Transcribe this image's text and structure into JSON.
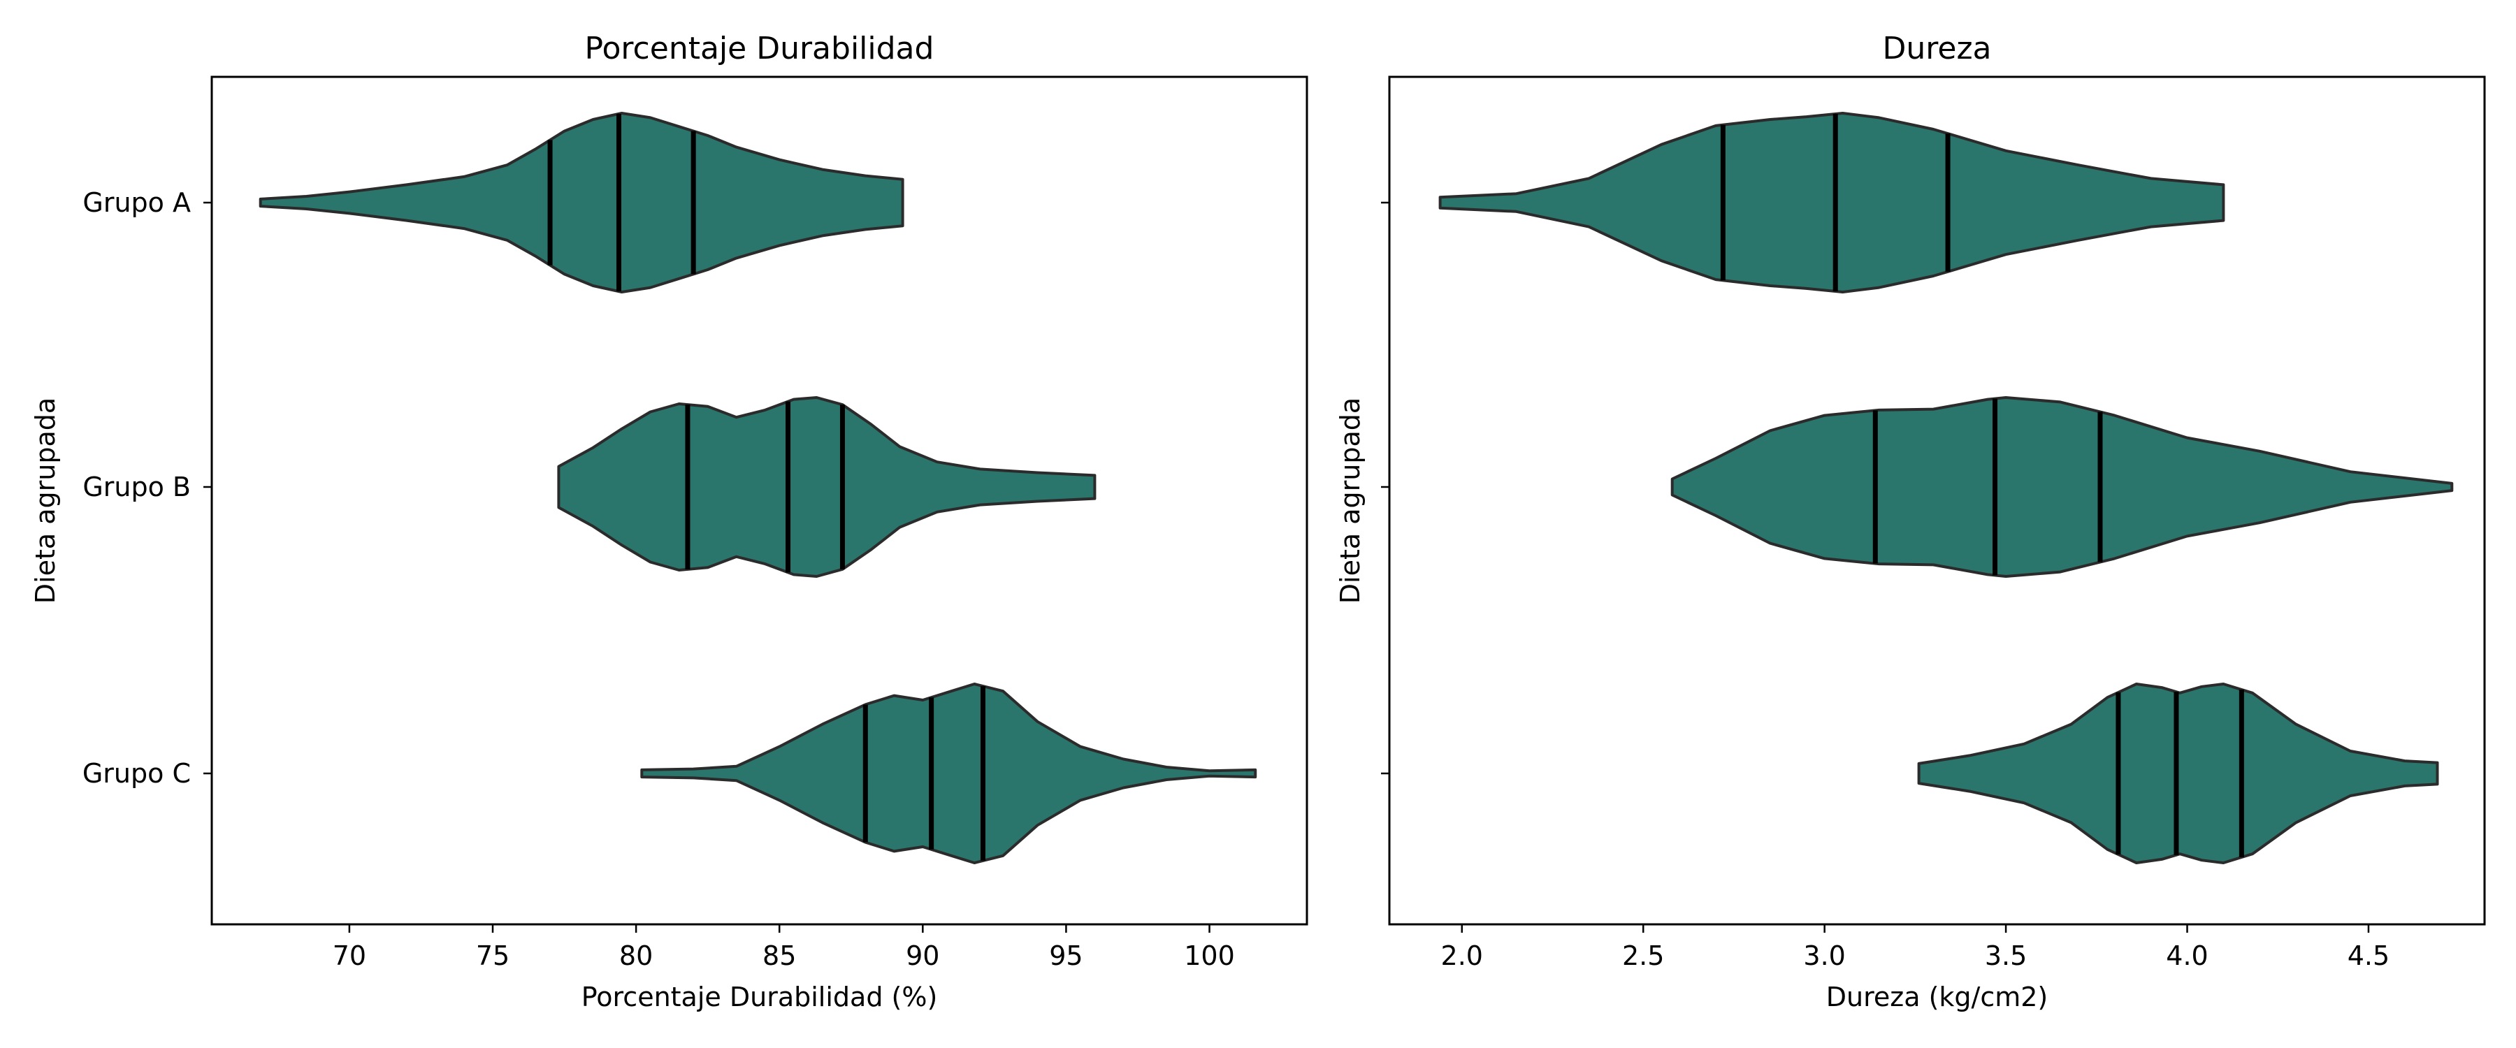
{
  "colors": {
    "violin_fill": "#2a756c",
    "violin_edge": "#2b2b2b",
    "quartile": "#000000",
    "background": "#ffffff",
    "axes": "#000000"
  },
  "chart_data": [
    {
      "type": "violin",
      "orientation": "horizontal",
      "title": "Porcentaje Durabilidad",
      "xlabel": "Porcentaje Durabilidad (%)",
      "ylabel": "Dieta agrupada",
      "xlim": [
        65.2,
        103.4
      ],
      "xticks": [
        70,
        75,
        80,
        85,
        90,
        95,
        100
      ],
      "categories": [
        "Grupo A",
        "Grupo B",
        "Grupo C"
      ],
      "show_category_labels": true,
      "series": [
        {
          "category": "Grupo A",
          "min": 66.9,
          "max": 89.3,
          "q1": 77.0,
          "median": 79.4,
          "q3": 82.0,
          "density": [
            [
              66.9,
              0.04
            ],
            [
              68.5,
              0.07
            ],
            [
              70,
              0.12
            ],
            [
              72,
              0.2
            ],
            [
              74,
              0.29
            ],
            [
              75.5,
              0.42
            ],
            [
              76.5,
              0.6
            ],
            [
              77.5,
              0.8
            ],
            [
              78.5,
              0.93
            ],
            [
              79.5,
              1.0
            ],
            [
              80.5,
              0.95
            ],
            [
              81.5,
              0.85
            ],
            [
              82.5,
              0.75
            ],
            [
              83.5,
              0.62
            ],
            [
              85,
              0.48
            ],
            [
              86.5,
              0.37
            ],
            [
              88,
              0.3
            ],
            [
              89.3,
              0.26
            ]
          ]
        },
        {
          "category": "Grupo B",
          "min": 77.3,
          "max": 96.0,
          "q1": 81.8,
          "median": 85.3,
          "q3": 87.2,
          "density": [
            [
              77.3,
              0.23
            ],
            [
              78.5,
              0.44
            ],
            [
              79.5,
              0.65
            ],
            [
              80.5,
              0.84
            ],
            [
              81.5,
              0.93
            ],
            [
              82.5,
              0.9
            ],
            [
              83.5,
              0.78
            ],
            [
              84.5,
              0.86
            ],
            [
              85.5,
              0.98
            ],
            [
              86.3,
              1.0
            ],
            [
              87.2,
              0.92
            ],
            [
              88.2,
              0.7
            ],
            [
              89.2,
              0.45
            ],
            [
              90.5,
              0.28
            ],
            [
              92,
              0.2
            ],
            [
              94,
              0.16
            ],
            [
              96.0,
              0.13
            ]
          ]
        },
        {
          "category": "Grupo C",
          "min": 80.2,
          "max": 101.6,
          "q1": 88.0,
          "median": 90.3,
          "q3": 92.1,
          "density": [
            [
              80.2,
              0.04
            ],
            [
              82,
              0.05
            ],
            [
              83.5,
              0.08
            ],
            [
              85,
              0.3
            ],
            [
              86.5,
              0.55
            ],
            [
              88,
              0.77
            ],
            [
              89,
              0.87
            ],
            [
              90,
              0.82
            ],
            [
              91,
              0.92
            ],
            [
              91.8,
              1.0
            ],
            [
              92.8,
              0.92
            ],
            [
              94,
              0.58
            ],
            [
              95.5,
              0.3
            ],
            [
              97,
              0.16
            ],
            [
              98.5,
              0.07
            ],
            [
              100,
              0.03
            ],
            [
              101.6,
              0.04
            ]
          ]
        }
      ]
    },
    {
      "type": "violin",
      "orientation": "horizontal",
      "title": "Dureza",
      "xlabel": "Dureza (kg/cm2)",
      "ylabel": "Dieta agrupada",
      "xlim": [
        1.8,
        4.82
      ],
      "xticks": [
        2.0,
        2.5,
        3.0,
        3.5,
        4.0,
        4.5
      ],
      "xtick_labels": [
        "2.0",
        "2.5",
        "3.0",
        "3.5",
        "4.0",
        "4.5"
      ],
      "categories": [
        "Grupo A",
        "Grupo B",
        "Grupo C"
      ],
      "show_category_labels": false,
      "series": [
        {
          "category": "Grupo A",
          "min": 1.94,
          "max": 4.1,
          "q1": 2.72,
          "median": 3.03,
          "q3": 3.34,
          "density": [
            [
              1.94,
              0.06
            ],
            [
              2.15,
              0.1
            ],
            [
              2.35,
              0.27
            ],
            [
              2.55,
              0.65
            ],
            [
              2.7,
              0.86
            ],
            [
              2.85,
              0.93
            ],
            [
              2.95,
              0.96
            ],
            [
              3.05,
              1.0
            ],
            [
              3.15,
              0.95
            ],
            [
              3.3,
              0.82
            ],
            [
              3.5,
              0.58
            ],
            [
              3.7,
              0.42
            ],
            [
              3.9,
              0.27
            ],
            [
              4.1,
              0.2
            ]
          ]
        },
        {
          "category": "Grupo B",
          "min": 2.58,
          "max": 4.73,
          "q1": 3.14,
          "median": 3.47,
          "q3": 3.76,
          "density": [
            [
              2.58,
              0.09
            ],
            [
              2.7,
              0.32
            ],
            [
              2.85,
              0.63
            ],
            [
              3.0,
              0.8
            ],
            [
              3.15,
              0.86
            ],
            [
              3.3,
              0.87
            ],
            [
              3.45,
              0.98
            ],
            [
              3.5,
              1.0
            ],
            [
              3.65,
              0.95
            ],
            [
              3.8,
              0.8
            ],
            [
              4.0,
              0.55
            ],
            [
              4.2,
              0.4
            ],
            [
              4.45,
              0.17
            ],
            [
              4.73,
              0.04
            ]
          ]
        },
        {
          "category": "Grupo C",
          "min": 3.26,
          "max": 4.69,
          "q1": 3.81,
          "median": 3.97,
          "q3": 4.15,
          "density": [
            [
              3.26,
              0.11
            ],
            [
              3.4,
              0.2
            ],
            [
              3.55,
              0.33
            ],
            [
              3.68,
              0.55
            ],
            [
              3.78,
              0.85
            ],
            [
              3.86,
              1.0
            ],
            [
              3.93,
              0.96
            ],
            [
              3.98,
              0.9
            ],
            [
              4.04,
              0.97
            ],
            [
              4.1,
              1.0
            ],
            [
              4.18,
              0.9
            ],
            [
              4.3,
              0.55
            ],
            [
              4.45,
              0.25
            ],
            [
              4.6,
              0.14
            ],
            [
              4.69,
              0.12
            ]
          ]
        }
      ]
    }
  ]
}
